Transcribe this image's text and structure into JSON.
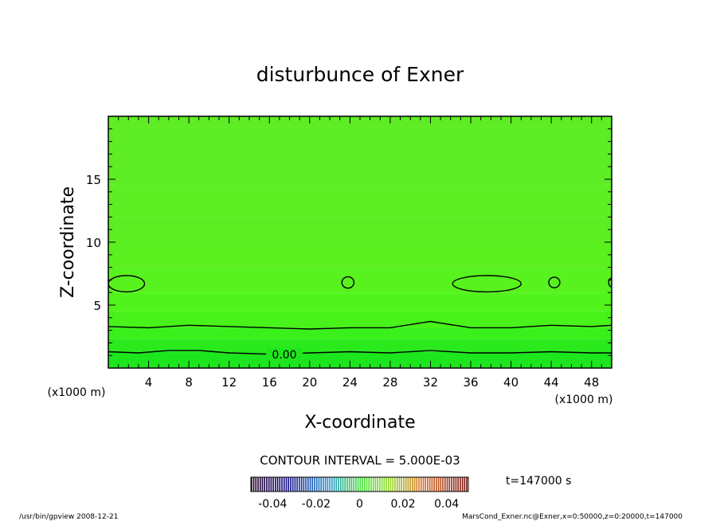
{
  "chart_data": {
    "type": "heatmap",
    "title": "disturbunce of Exner",
    "xlabel": "X-coordinate",
    "ylabel": "Z-coordinate",
    "x_unit": "(x1000 m)",
    "y_unit": "(x1000 m)",
    "xlim": [
      0,
      50
    ],
    "ylim": [
      0,
      20
    ],
    "x_ticks": [
      4,
      8,
      12,
      16,
      20,
      24,
      28,
      32,
      36,
      40,
      44,
      48
    ],
    "y_ticks": [
      5,
      10,
      15
    ],
    "contour_interval_text": "CONTOUR INTERVAL = 5.000E-03",
    "time_text": "t=147000 s",
    "contour_label": "0.00",
    "colorbar": {
      "ticks": [
        "-0.04",
        "-0.02",
        "0",
        "0.02",
        "0.04"
      ],
      "tick_values": [
        -0.04,
        -0.02,
        0,
        0.02,
        0.04
      ],
      "range": [
        -0.05,
        0.05
      ]
    },
    "bands": [
      {
        "z_top": 1.3,
        "color": "#1ee61e"
      },
      {
        "z_top": 2.3,
        "color": "#2aea1e"
      },
      {
        "z_top": 3.2,
        "color": "#3af01c"
      },
      {
        "z_top": 4.5,
        "color": "#48f21a"
      },
      {
        "z_top": 6.0,
        "color": "#50f41c"
      },
      {
        "z_top": 8.0,
        "color": "#58f21e"
      },
      {
        "z_top": 10.0,
        "color": "#5af020"
      },
      {
        "z_top": 12.0,
        "color": "#5cee22"
      },
      {
        "z_top": 14.5,
        "color": "#5eee24"
      },
      {
        "z_top": 20.0,
        "color": "#5eec24"
      }
    ],
    "contour_lines": [
      {
        "value": 0.0,
        "points": [
          [
            0,
            1.3
          ],
          [
            3,
            1.2
          ],
          [
            6,
            1.4
          ],
          [
            9,
            1.4
          ],
          [
            12,
            1.2
          ],
          [
            16,
            1.1
          ],
          [
            20,
            1.2
          ],
          [
            24,
            1.3
          ],
          [
            28,
            1.2
          ],
          [
            32,
            1.4
          ],
          [
            36,
            1.2
          ],
          [
            40,
            1.2
          ],
          [
            44,
            1.3
          ],
          [
            48,
            1.2
          ],
          [
            50,
            1.2
          ]
        ]
      },
      {
        "value": 0.005,
        "points": [
          [
            0,
            3.3
          ],
          [
            4,
            3.2
          ],
          [
            8,
            3.4
          ],
          [
            12,
            3.3
          ],
          [
            16,
            3.2
          ],
          [
            20,
            3.1
          ],
          [
            24,
            3.2
          ],
          [
            28,
            3.2
          ],
          [
            32,
            3.7
          ],
          [
            36,
            3.2
          ],
          [
            40,
            3.2
          ],
          [
            44,
            3.4
          ],
          [
            48,
            3.3
          ],
          [
            50,
            3.4
          ]
        ]
      }
    ],
    "contour_loops": [
      {
        "cx": 1.8,
        "cz": 6.7,
        "rx": 1.8,
        "rz": 0.65
      },
      {
        "cx": 23.8,
        "cz": 6.8,
        "rx": 0.6,
        "rz": 0.45
      },
      {
        "cx": 37.6,
        "cz": 6.7,
        "rx": 3.4,
        "rz": 0.65
      },
      {
        "cx": 44.3,
        "cz": 6.8,
        "rx": 0.55,
        "rz": 0.42
      },
      {
        "cx": 50.0,
        "cz": 6.8,
        "rx": 0.3,
        "rz": 0.35
      }
    ]
  },
  "footer": {
    "left": "/usr/bin/gpview   2008-12-21",
    "right": "MarsCond_Exner.nc@Exner,x=0:50000,z=0:20000,t=147000"
  }
}
